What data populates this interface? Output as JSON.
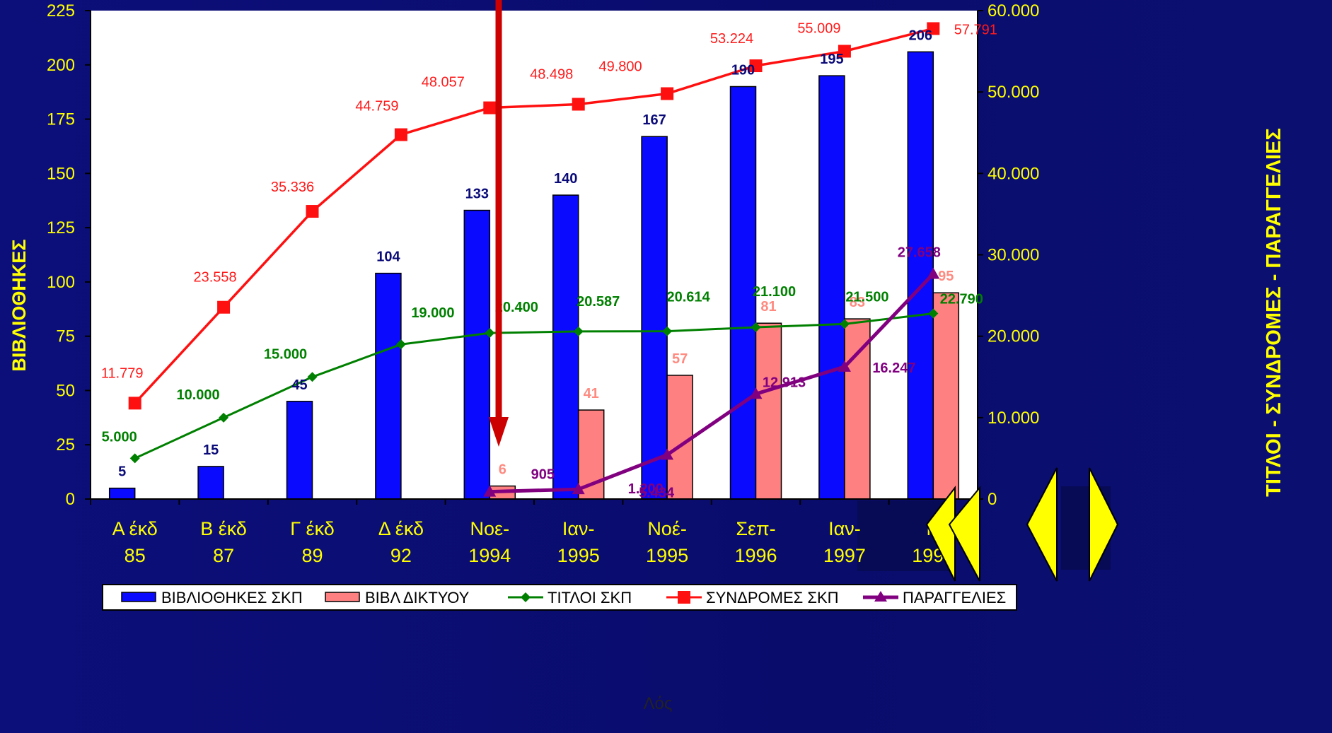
{
  "chart_data": {
    "type": "bar",
    "categories": [
      [
        "Α έκδ",
        "85"
      ],
      [
        "Β έκδ",
        "87"
      ],
      [
        "Γ έκδ",
        "89"
      ],
      [
        "Δ έκδ",
        "92"
      ],
      [
        "Νοε-",
        "1994"
      ],
      [
        "Ιαν-",
        "1995"
      ],
      [
        "Νοέ-",
        "1995"
      ],
      [
        "Σεπ-",
        "1996"
      ],
      [
        "Ιαν-",
        "1997"
      ],
      [
        "Ν",
        "1997"
      ]
    ],
    "xlabel": "Λός",
    "ylabel_left": "ΒΙΒΛΙΟΘΗΚΕΣ",
    "ylabel_right": "ΤΙΤΛΟΙ - ΣΥΝΔΡΟΜΕΣ - ΠΑΡΑΓΓΕΛΙΕΣ",
    "ylim_left": [
      0,
      225
    ],
    "yticks_left": [
      "0",
      "25",
      "50",
      "75",
      "100",
      "125",
      "150",
      "175",
      "200",
      "225"
    ],
    "ylim_right": [
      0,
      60000
    ],
    "yticks_right": [
      "0",
      "10.000",
      "20.000",
      "30.000",
      "40.000",
      "50.000",
      "60.000"
    ],
    "grid": false,
    "legend_position": "bottom",
    "series": [
      {
        "name": "ΒΙΒΛΙΟΘΗΚΕΣ ΣΚΠ",
        "kind": "bar",
        "axis": "left",
        "color": "#0a0aff",
        "label_color": "#0a0a78",
        "values": [
          5,
          15,
          45,
          104,
          133,
          140,
          167,
          190,
          195,
          206
        ],
        "labels": [
          "5",
          "15",
          "45",
          "104",
          "133",
          "140",
          "167",
          "190",
          "195",
          "206"
        ]
      },
      {
        "name": "ΒΙΒΛ ΔΙΚΤΥΟΥ",
        "kind": "bar",
        "axis": "left",
        "color": "#ff8080",
        "label_color": "#ff8a80",
        "values": [
          null,
          null,
          null,
          null,
          6,
          41,
          57,
          81,
          83,
          95
        ],
        "labels": [
          "",
          "",
          "",
          "",
          "6",
          "41",
          "57",
          "81",
          "83",
          "95"
        ]
      },
      {
        "name": "ΤΙΤΛΟΙ ΣΚΠ",
        "kind": "line",
        "axis": "right",
        "color": "#008000",
        "marker": "diamond",
        "label_color": "#008000",
        "values": [
          5000,
          10000,
          15000,
          19000,
          20400,
          20587,
          20614,
          21100,
          21500,
          22790
        ],
        "labels": [
          "5.000",
          "10.000",
          "15.000",
          "19.000",
          "20.400",
          "20.587",
          "20.614",
          "21.100",
          "21.500",
          "22.790"
        ]
      },
      {
        "name": "ΣΥΝΔΡΟΜΕΣ ΣΚΠ",
        "kind": "line",
        "axis": "right",
        "color": "#ff1010",
        "marker": "square",
        "label_color": "#ff1a1a",
        "values": [
          11779,
          23558,
          35336,
          44759,
          48057,
          48498,
          49800,
          53224,
          55009,
          57791
        ],
        "labels": [
          "11.779",
          "23.558",
          "35.336",
          "44.759",
          "48.057",
          "48.498",
          "49.800",
          "53.224",
          "55.009",
          "57.791"
        ]
      },
      {
        "name": "ΠΑΡΑΓΓΕΛΙΕΣ",
        "kind": "line",
        "axis": "right",
        "color": "#800080",
        "marker": "triangle",
        "label_color": "#800080",
        "values": [
          null,
          null,
          null,
          null,
          905,
          1200,
          5434,
          12913,
          16247,
          27658
        ],
        "labels": [
          "",
          "",
          "",
          "",
          "905",
          "1.200",
          "5.434",
          "12.913",
          "16.247",
          "27.658"
        ]
      }
    ]
  },
  "colors": {
    "background": "#0c0f7a",
    "plot_area": "#ffffff",
    "axis_text": "#ffff00",
    "arrow": "#cc0000",
    "nav": "#ffff00"
  },
  "navigation": {
    "previous_icon": "double-triangle-left-icon",
    "next_icon": "triangle-left-icon"
  }
}
